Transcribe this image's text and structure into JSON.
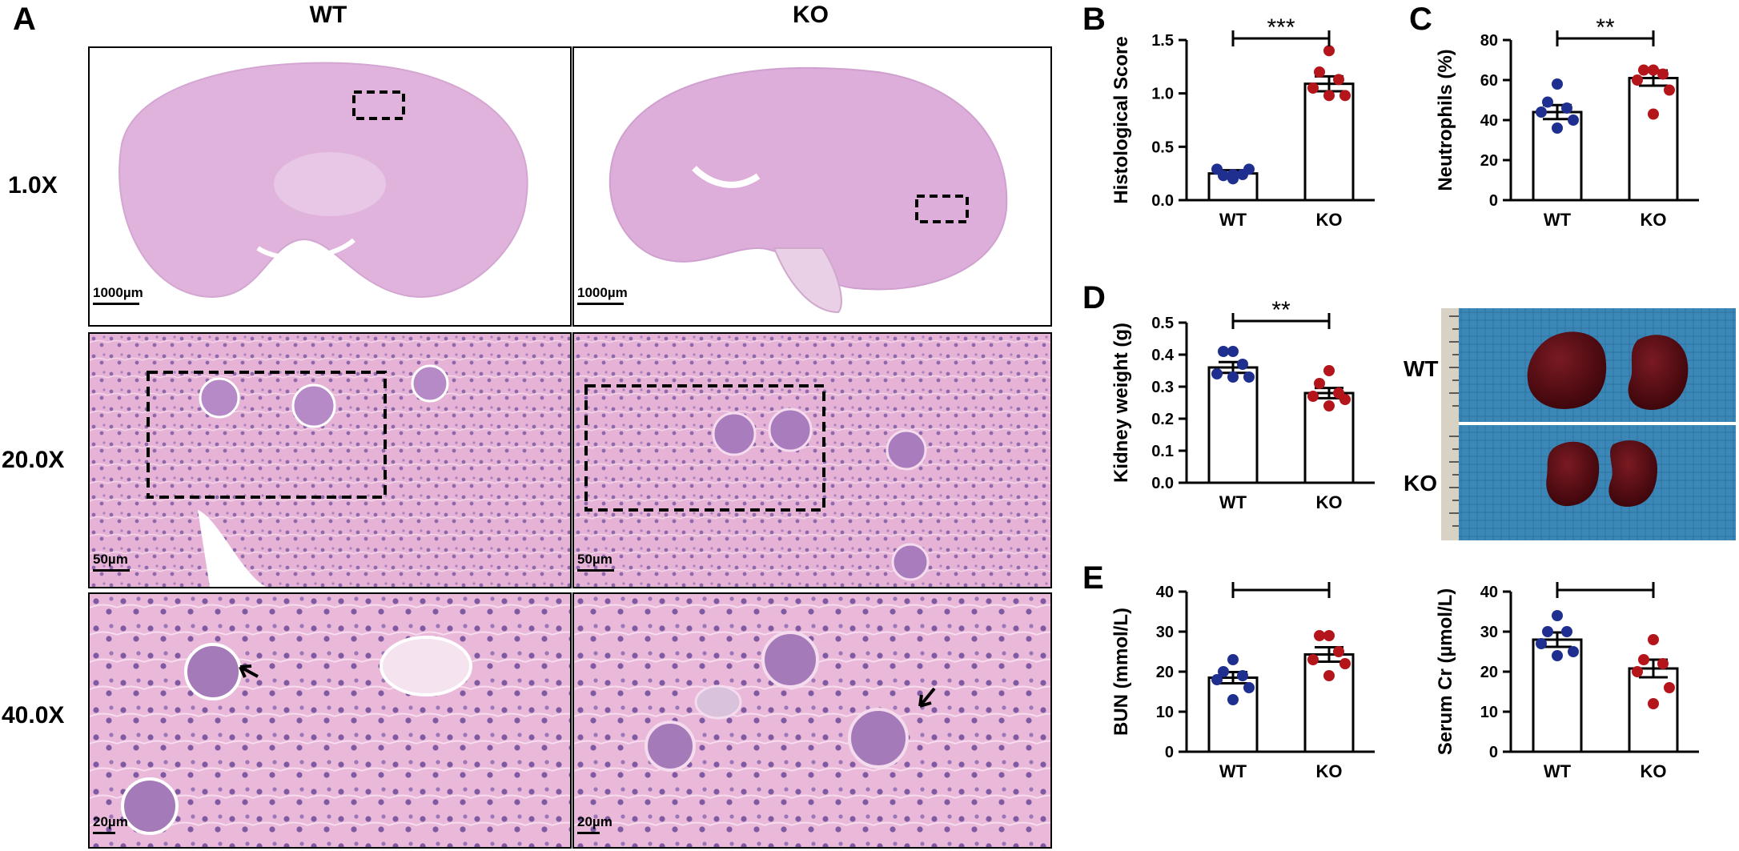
{
  "panel_labels": {
    "A": "A",
    "B": "B",
    "C": "C",
    "D": "D",
    "E": "E"
  },
  "histology": {
    "columns": [
      "WT",
      "KO"
    ],
    "rows": [
      "1.0X",
      "20.0X",
      "40.0X"
    ],
    "scale_bars": [
      "1000µm",
      "1000µm",
      "50µm",
      "50µm",
      "20µm",
      "20µm"
    ]
  },
  "photo_labels": [
    "WT",
    "KO"
  ],
  "colors": {
    "wt": "#1f2f8f",
    "ko": "#b3151b",
    "he_pink": "#e8b6d8",
    "he_purple": "#9a6fb8"
  },
  "chart_data": [
    {
      "id": "B",
      "type": "bar",
      "categories": [
        "WT",
        "KO"
      ],
      "ylabel": "Histological Score",
      "ylim": [
        0,
        1.5
      ],
      "yticks": [
        "0.0",
        "0.5",
        "1.0",
        "1.5"
      ],
      "means": [
        0.25,
        1.09
      ],
      "sem": [
        0.03,
        0.07
      ],
      "points": [
        [
          0.2,
          0.23,
          0.24,
          0.29,
          0.29,
          0.24
        ],
        [
          1.4,
          1.2,
          1.13,
          1.05,
          0.98,
          0.98
        ]
      ],
      "significance": "***"
    },
    {
      "id": "C",
      "type": "bar",
      "categories": [
        "WT",
        "KO"
      ],
      "ylabel": "Neutrophils (%)",
      "ylim": [
        0,
        80
      ],
      "yticks": [
        "0",
        "20",
        "40",
        "60",
        "80"
      ],
      "means": [
        44,
        61
      ],
      "sem": [
        3.5,
        3.8
      ],
      "points": [
        [
          58,
          49,
          46,
          44,
          40,
          36
        ],
        [
          65,
          65,
          63,
          60,
          55,
          43
        ]
      ],
      "significance": "**"
    },
    {
      "id": "D",
      "type": "bar",
      "categories": [
        "WT",
        "KO"
      ],
      "ylabel": "Kidney weight (g)",
      "ylim": [
        0,
        0.5
      ],
      "yticks": [
        "0.0",
        "0.1",
        "0.2",
        "0.3",
        "0.4",
        "0.5"
      ],
      "means": [
        0.36,
        0.28
      ],
      "sem": [
        0.017,
        0.016
      ],
      "points": [
        [
          0.41,
          0.41,
          0.37,
          0.34,
          0.33,
          0.33
        ],
        [
          0.35,
          0.31,
          0.28,
          0.27,
          0.26,
          0.24
        ]
      ],
      "significance": "**"
    },
    {
      "id": "E1",
      "type": "bar",
      "categories": [
        "WT",
        "KO"
      ],
      "ylabel": "BUN (mmol/L)",
      "ylim": [
        0,
        40
      ],
      "yticks": [
        "0",
        "10",
        "20",
        "30",
        "40"
      ],
      "means": [
        18.5,
        24.3
      ],
      "sem": [
        1.4,
        1.8
      ],
      "points": [
        [
          23,
          20,
          19,
          18,
          16,
          13
        ],
        [
          29,
          29,
          25,
          23,
          22,
          19
        ]
      ],
      "significance": "**"
    },
    {
      "id": "E2",
      "type": "bar",
      "categories": [
        "WT",
        "KO"
      ],
      "ylabel": "Serum Cr (µmol/L)",
      "ylim": [
        0,
        40
      ],
      "yticks": [
        "0",
        "10",
        "20",
        "30",
        "40"
      ],
      "means": [
        28,
        20.8
      ],
      "sem": [
        1.8,
        2.2
      ],
      "points": [
        [
          34,
          30,
          30,
          27,
          25,
          24
        ],
        [
          28,
          23,
          22,
          20,
          16,
          12
        ]
      ],
      "significance": "*"
    }
  ]
}
